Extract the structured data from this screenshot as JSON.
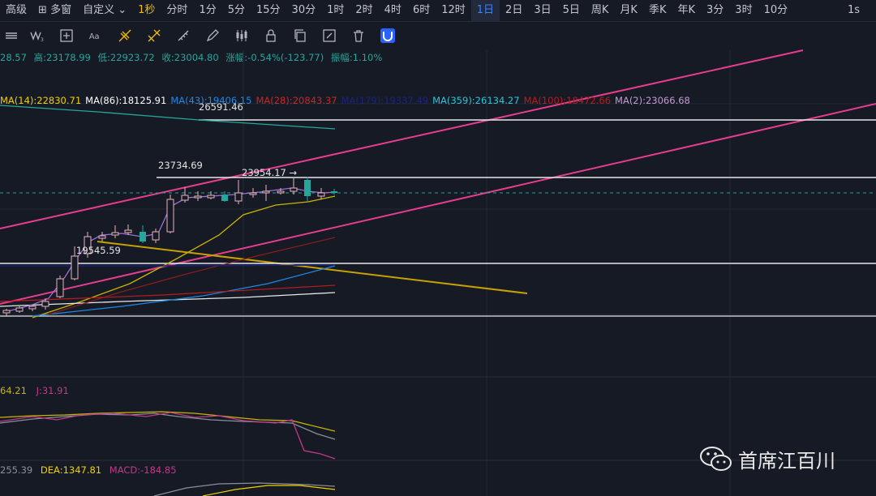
{
  "toolbar": {
    "items": [
      "历史高级",
      "多窗",
      "自定义",
      "1秒",
      "分时",
      "1分",
      "5分",
      "15分",
      "30分",
      "1时",
      "2时",
      "4时",
      "6时",
      "12时",
      "1日",
      "2日",
      "3日",
      "5日",
      "周K",
      "月K",
      "季K",
      "年K",
      "3分",
      "3时",
      "10分"
    ],
    "visible_first": "高级",
    "highlighted": "1秒",
    "selected": "1日",
    "right": "1s"
  },
  "ohlc": {
    "open": "28.57",
    "high": "高:23178.99",
    "low": "低:22923.72",
    "close": "收:23004.80",
    "change": "涨幅:-0.54%(-123.77)",
    "amplitude": "振幅:1.10%"
  },
  "ma_legend": [
    {
      "text": "MA(14):22830.71",
      "color": "#f0d000"
    },
    {
      "text": "MA(86):18125.91",
      "color": "#ffffff"
    },
    {
      "text": "MA(43):19406.15",
      "color": "#1e88e5"
    },
    {
      "text": "MA(28):20843.37",
      "color": "#c62828"
    },
    {
      "text": "MA(179):19337.49",
      "color": "#1a237e"
    },
    {
      "text": "MA(359):26134.27",
      "color": "#26c6da"
    },
    {
      "text": "MA(100):18472.66",
      "color": "#b71c1c"
    },
    {
      "text": "MA(2):23066.68",
      "color": "#c39bd3"
    }
  ],
  "price_labels": {
    "level_26591": "26591.46",
    "high_23734": "23734.69",
    "high_23954": "23954.17 →",
    "low_19545": "19545.59"
  },
  "kdj": {
    "k": "64.21",
    "j": "J:31.91"
  },
  "macd": {
    "dif": "255.39",
    "dea": "DEA:1347.81",
    "macd": "MACD:-184.85"
  },
  "watermark": {
    "text": "首席江百川",
    "icon": "wechat-icon"
  },
  "colors": {
    "bg": "#161a25",
    "up": "#26a69a",
    "down": "#ef5350",
    "pink_line": "#e63d8e",
    "yellow_line": "#c8a000",
    "highlight": "#f0b90b",
    "selected": "#3b82f6"
  }
}
